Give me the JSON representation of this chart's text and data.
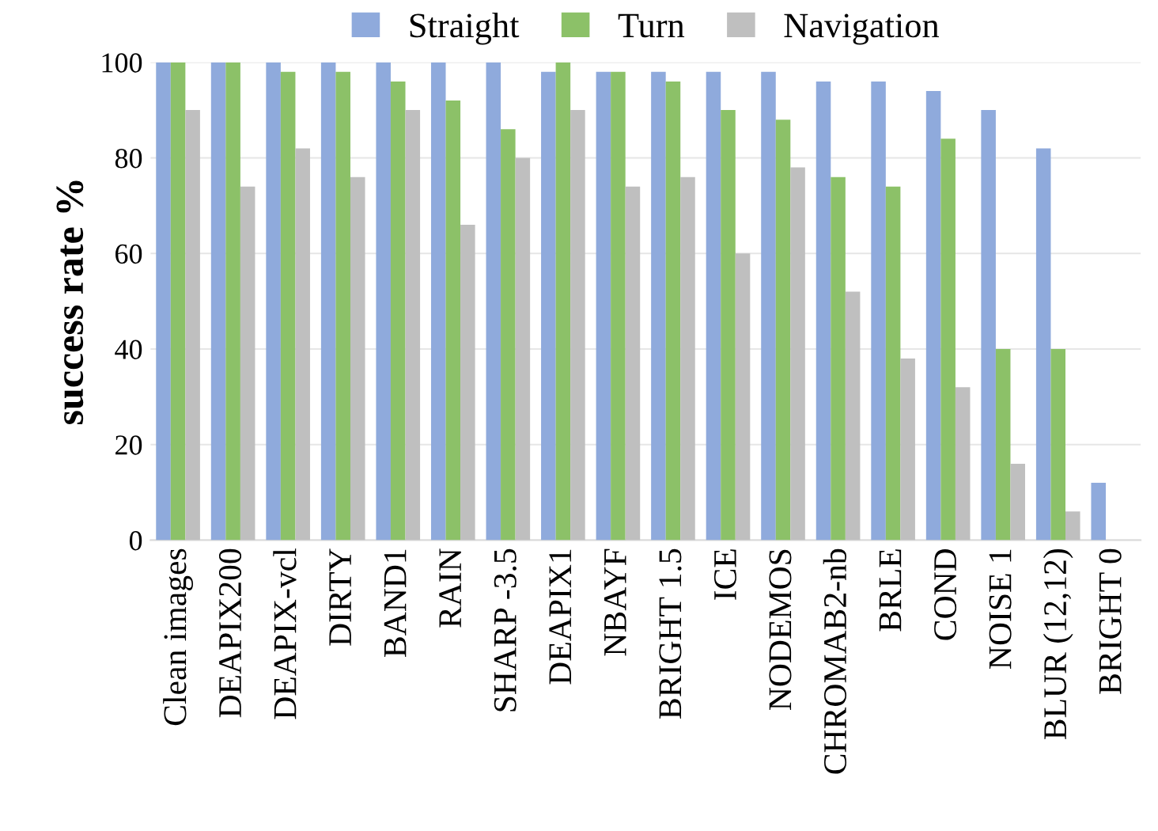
{
  "chart_data": {
    "type": "bar",
    "ylabel": "success rate %",
    "categories": [
      "Clean images",
      "DEAPIX200",
      "DEAPIX-vcl",
      "DIRTY",
      "BAND1",
      "RAIN",
      "SHARP -3.5",
      "DEAPIX1",
      "NBAYF",
      "BRIGHT 1.5",
      "ICE",
      "NODEMOS",
      "CHROMAB2-nb",
      "BRLE",
      "COND",
      "NOISE 1",
      "BLUR (12,12)",
      "BRIGHT 0"
    ],
    "series": [
      {
        "name": "Straight",
        "color": "#8faadc",
        "values": [
          100,
          100,
          100,
          100,
          100,
          100,
          100,
          98,
          98,
          98,
          98,
          98,
          96,
          96,
          94,
          90,
          82,
          12
        ]
      },
      {
        "name": "Turn",
        "color": "#8cc168",
        "values": [
          100,
          100,
          98,
          98,
          96,
          92,
          86,
          100,
          98,
          96,
          90,
          88,
          76,
          74,
          84,
          40,
          40,
          0
        ]
      },
      {
        "name": "Navigation",
        "color": "#bfbfbf",
        "values": [
          90,
          74,
          82,
          76,
          90,
          66,
          80,
          90,
          74,
          76,
          60,
          78,
          52,
          38,
          32,
          16,
          6,
          0
        ]
      }
    ],
    "ylim": [
      0,
      100
    ],
    "yticks": [
      0,
      20,
      40,
      60,
      80,
      100
    ],
    "grid": "y",
    "legend": "top"
  }
}
